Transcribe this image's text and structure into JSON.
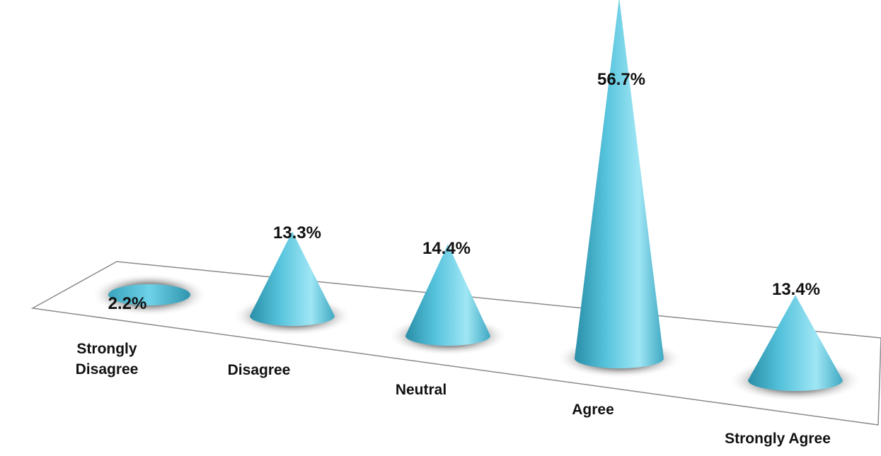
{
  "chart_data": {
    "type": "bar",
    "style": "3d-cone",
    "title": "",
    "xlabel": "",
    "ylabel": "",
    "categories": [
      "Strongly Disagree",
      "Disagree",
      "Neutral",
      "Agree",
      "Strongly Agree"
    ],
    "category_label_lines": [
      [
        "Strongly",
        "Disagree"
      ],
      [
        "Disagree"
      ],
      [
        "Neutral"
      ],
      [
        "Agree"
      ],
      [
        "Strongly Agree"
      ]
    ],
    "values": [
      2.2,
      13.3,
      14.4,
      56.7,
      13.4
    ],
    "value_labels": [
      "2.2%",
      "13.3%",
      "14.4%",
      "56.7%",
      "13.4%"
    ],
    "unit": "%",
    "ylim": [
      0,
      60
    ],
    "grid": false,
    "legend": "none",
    "colors": {
      "cone_dark": "#2a8ea8",
      "cone_mid": "#56c3dc",
      "cone_light": "#9fe6f5",
      "base_top": "#3fa9c2",
      "floor_stroke": "#8a8a8a",
      "shadow": "#555555",
      "text": "#111111"
    }
  }
}
